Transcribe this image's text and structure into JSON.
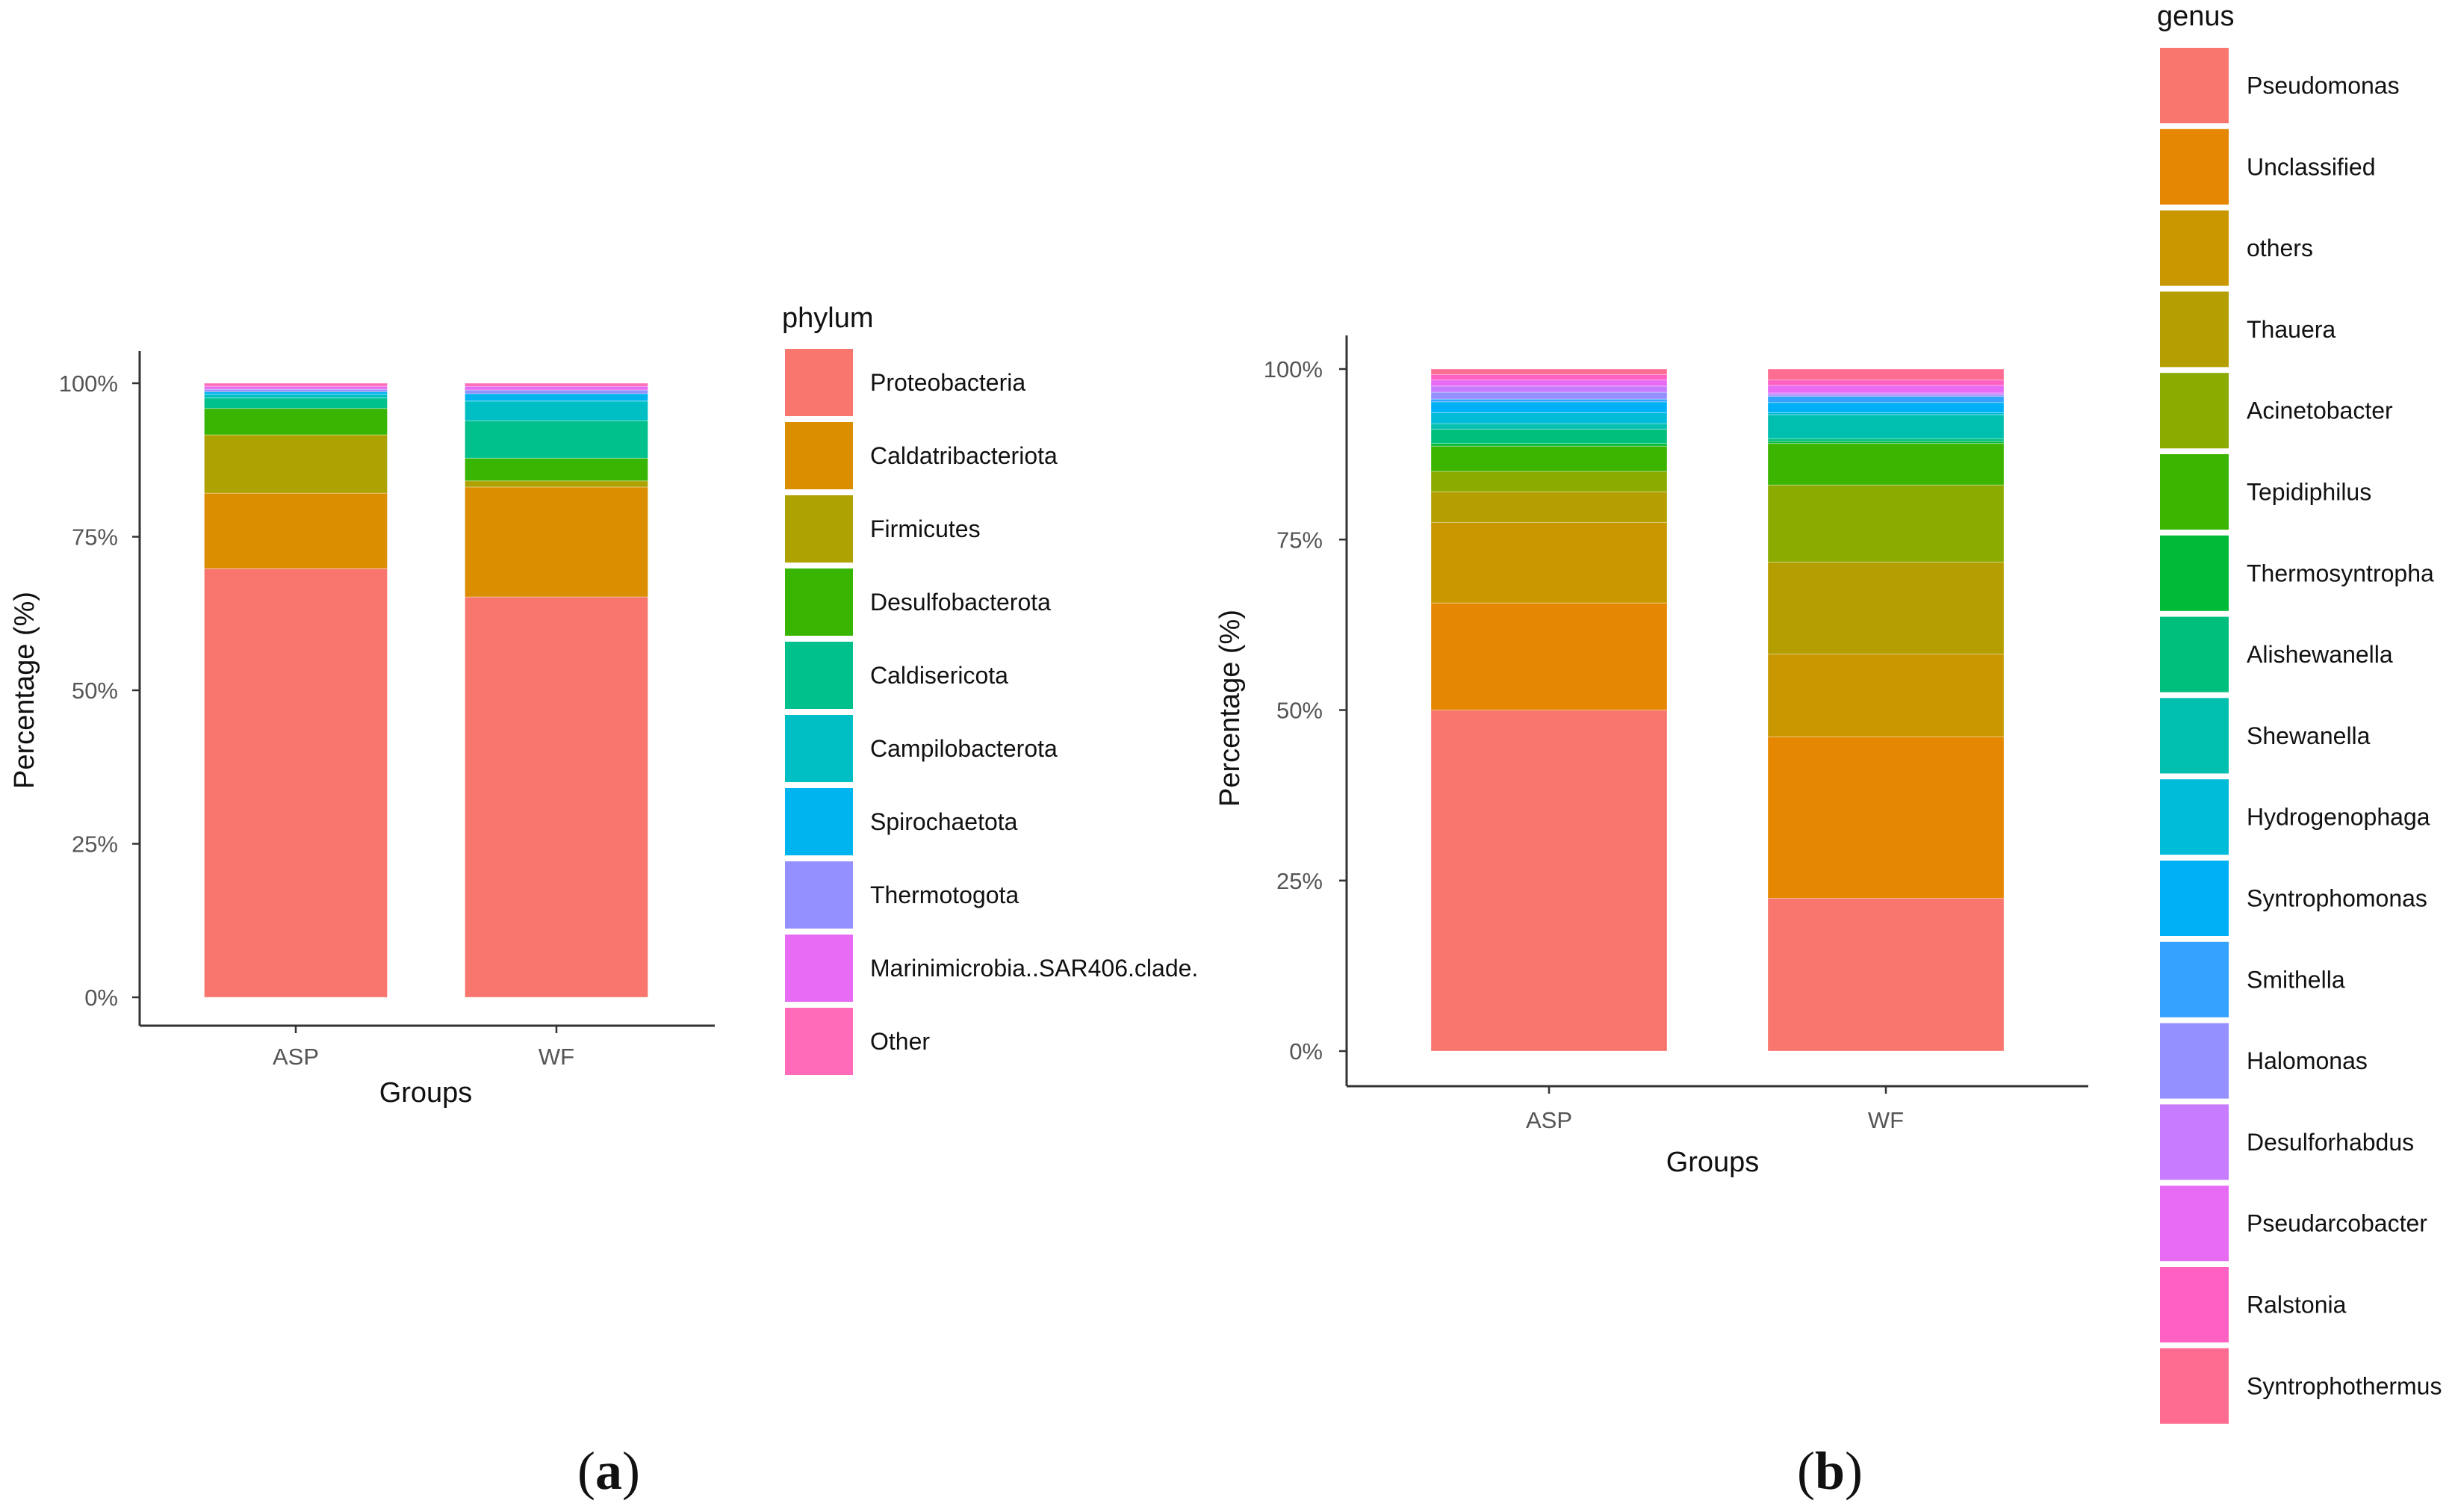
{
  "chart_data": [
    {
      "type": "bar",
      "stacked": true,
      "panel_label": "a",
      "xlabel": "Groups",
      "ylabel": "Percentage (%)",
      "ylim": [
        0,
        100
      ],
      "yticks": [
        "0%",
        "25%",
        "50%",
        "75%",
        "100%"
      ],
      "categories": [
        "ASP",
        "WF"
      ],
      "legend_title": "phylum",
      "series": [
        {
          "name": "Proteobacteria",
          "color": "#F8766D",
          "values": [
            69.8,
            65.2
          ]
        },
        {
          "name": "Caldatribacteriota",
          "color": "#DB8E00",
          "values": [
            12.3,
            17.9
          ]
        },
        {
          "name": "Firmicutes",
          "color": "#AEA200",
          "values": [
            9.5,
            1.0
          ]
        },
        {
          "name": "Desulfobacterota",
          "color": "#38B500",
          "values": [
            4.3,
            3.7
          ]
        },
        {
          "name": "Caldisericota",
          "color": "#00C08B",
          "values": [
            1.7,
            6.1
          ]
        },
        {
          "name": "Campilobacterota",
          "color": "#00BFC4",
          "values": [
            0.6,
            3.2
          ]
        },
        {
          "name": "Spirochaetota",
          "color": "#00B4F0",
          "values": [
            0.4,
            1.2
          ]
        },
        {
          "name": "Thermotogota",
          "color": "#9590FF",
          "values": [
            0.4,
            0.6
          ]
        },
        {
          "name": "Marinimicrobia..SAR406.clade.",
          "color": "#E76BF3",
          "values": [
            0.5,
            0.6
          ]
        },
        {
          "name": "Other",
          "color": "#FF6BB8",
          "values": [
            0.5,
            0.5
          ]
        }
      ]
    },
    {
      "type": "bar",
      "stacked": true,
      "panel_label": "b",
      "xlabel": "Groups",
      "ylabel": "Percentage (%)",
      "ylim": [
        0,
        100
      ],
      "yticks": [
        "0%",
        "25%",
        "50%",
        "75%",
        "100%"
      ],
      "categories": [
        "ASP",
        "WF"
      ],
      "legend_title": "genus",
      "series": [
        {
          "name": "Pseudomonas",
          "color": "#F8766D",
          "values": [
            50.0,
            22.4
          ]
        },
        {
          "name": "Unclassified",
          "color": "#E58700",
          "values": [
            15.7,
            23.7
          ]
        },
        {
          "name": "others",
          "color": "#C99800",
          "values": [
            11.8,
            12.1
          ]
        },
        {
          "name": "Thauera",
          "color": "#B59F00",
          "values": [
            4.5,
            13.5
          ]
        },
        {
          "name": "Acinetobacter",
          "color": "#8BAB00",
          "values": [
            3.0,
            11.3
          ]
        },
        {
          "name": "Tepidiphilus",
          "color": "#3CB500",
          "values": [
            3.7,
            6.1
          ]
        },
        {
          "name": "Thermosyntropha",
          "color": "#00BA38",
          "values": [
            0.4,
            0.3
          ]
        },
        {
          "name": "Alishewanella",
          "color": "#00BF7D",
          "values": [
            2.1,
            0.4
          ]
        },
        {
          "name": "Shewanella",
          "color": "#00BFAE",
          "values": [
            0.8,
            3.5
          ]
        },
        {
          "name": "Hydrogenophaga",
          "color": "#00BCD8",
          "values": [
            1.6,
            0.3
          ]
        },
        {
          "name": "Syntrophomonas",
          "color": "#00B0F6",
          "values": [
            1.6,
            1.5
          ]
        },
        {
          "name": "Smithella",
          "color": "#35A2FF",
          "values": [
            0.4,
            0.9
          ]
        },
        {
          "name": "Halomonas",
          "color": "#9590FF",
          "values": [
            1.0,
            0.2
          ]
        },
        {
          "name": "Desulforhabdus",
          "color": "#C77CFF",
          "values": [
            0.9,
            0.3
          ]
        },
        {
          "name": "Pseudarcobacter",
          "color": "#E76BF3",
          "values": [
            0.9,
            1.1
          ]
        },
        {
          "name": "Ralstonia",
          "color": "#FF61C3",
          "values": [
            0.8,
            0.8
          ]
        },
        {
          "name": "Syntrophothermus",
          "color": "#FF6C91",
          "values": [
            0.8,
            1.6
          ]
        }
      ]
    }
  ]
}
